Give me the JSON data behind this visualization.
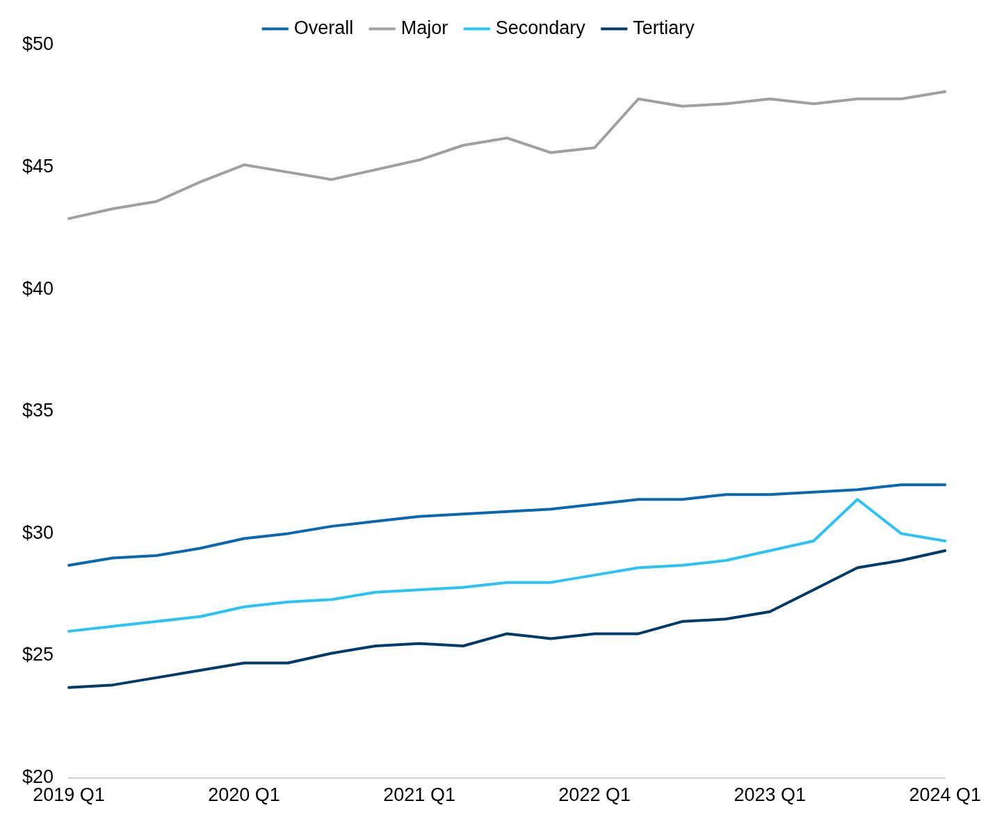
{
  "chart_data": {
    "type": "line",
    "categories": [
      "2019 Q1",
      null,
      null,
      null,
      "2020 Q1",
      null,
      null,
      null,
      "2021 Q1",
      null,
      null,
      null,
      "2022 Q1",
      null,
      null,
      null,
      "2023 Q1",
      null,
      null,
      null,
      "2024 Q1"
    ],
    "series": [
      {
        "name": "Overall",
        "color": "#0a68b0",
        "values": [
          28.7,
          29.0,
          29.1,
          29.4,
          29.8,
          30.0,
          30.3,
          30.5,
          30.7,
          30.8,
          30.9,
          31.0,
          31.2,
          31.4,
          31.4,
          31.6,
          31.6,
          31.7,
          31.8,
          32.0,
          32.0
        ]
      },
      {
        "name": "Major",
        "color": "#a0a0a0",
        "values": [
          42.9,
          43.3,
          43.6,
          44.4,
          45.1,
          44.8,
          44.5,
          44.9,
          45.3,
          45.9,
          46.2,
          45.6,
          45.8,
          47.8,
          47.5,
          47.6,
          47.8,
          47.6,
          47.8,
          47.8,
          48.1
        ]
      },
      {
        "name": "Secondary",
        "color": "#29c3f5",
        "values": [
          26.0,
          26.2,
          26.4,
          26.6,
          27.0,
          27.2,
          27.3,
          27.6,
          27.7,
          27.8,
          28.0,
          28.0,
          28.3,
          28.6,
          28.7,
          28.9,
          29.3,
          29.7,
          31.4,
          30.0,
          29.7
        ]
      },
      {
        "name": "Tertiary",
        "color": "#003a68",
        "values": [
          23.7,
          23.8,
          24.1,
          24.4,
          24.7,
          24.7,
          25.1,
          25.4,
          25.5,
          25.4,
          25.9,
          25.7,
          25.9,
          25.9,
          26.4,
          26.5,
          26.8,
          27.7,
          28.6,
          28.9,
          29.3
        ]
      }
    ],
    "ylim": [
      20,
      50
    ],
    "yticks": [
      {
        "value": 20,
        "label": "$20"
      },
      {
        "value": 25,
        "label": "$25"
      },
      {
        "value": 30,
        "label": "$30"
      },
      {
        "value": 35,
        "label": "$35"
      },
      {
        "value": 40,
        "label": "$40"
      },
      {
        "value": 45,
        "label": "$45"
      },
      {
        "value": 50,
        "label": "$50"
      }
    ],
    "grid": false,
    "legend": "top",
    "marker": "none",
    "line_style": "solid"
  }
}
